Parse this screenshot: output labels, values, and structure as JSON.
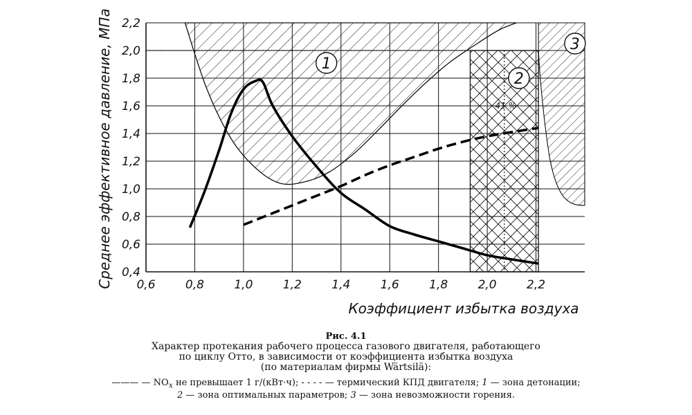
{
  "chart_data": {
    "type": "line",
    "xlabel": "Коэффициент избытка воздуха",
    "ylabel": "Среднее эффективное давление, МПа",
    "xlim": [
      0.6,
      2.4
    ],
    "ylim": [
      0.4,
      2.2
    ],
    "x_ticks": [
      "0,6",
      "0,8",
      "1,0",
      "1,2",
      "1,4",
      "1,6",
      "1,8",
      "2,0",
      "2,2"
    ],
    "y_ticks": [
      "0,4",
      "0,6",
      "0,8",
      "1,0",
      "1,2",
      "1,4",
      "1,6",
      "1,8",
      "2,0",
      "2,2"
    ],
    "grid": true,
    "series": [
      {
        "name": "NOx",
        "style": "solid",
        "x": [
          0.78,
          0.84,
          0.9,
          0.95,
          1.0,
          1.05,
          1.08,
          1.12,
          1.2,
          1.3,
          1.4,
          1.5,
          1.6,
          1.7,
          1.8,
          1.9,
          2.0,
          2.1,
          2.21
        ],
        "y": [
          0.72,
          0.98,
          1.28,
          1.55,
          1.72,
          1.78,
          1.77,
          1.6,
          1.38,
          1.16,
          0.97,
          0.85,
          0.73,
          0.67,
          0.62,
          0.57,
          0.52,
          0.49,
          0.46
        ]
      },
      {
        "name": "термический КПД",
        "style": "dashed",
        "x": [
          1.0,
          1.1,
          1.2,
          1.3,
          1.4,
          1.5,
          1.6,
          1.7,
          1.8,
          1.9,
          2.0,
          2.1,
          2.21
        ],
        "y": [
          0.74,
          0.81,
          0.88,
          0.95,
          1.02,
          1.1,
          1.17,
          1.23,
          1.29,
          1.34,
          1.38,
          1.41,
          1.44
        ]
      }
    ],
    "zones": [
      {
        "label": "1",
        "name": "зона детонации",
        "boundary_x": [
          0.76,
          0.85,
          0.95,
          1.05,
          1.15,
          1.25,
          1.35,
          1.45,
          1.55,
          1.65,
          1.75,
          1.85,
          1.95,
          2.05,
          2.12
        ],
        "boundary_y": [
          2.2,
          1.72,
          1.36,
          1.15,
          1.04,
          1.05,
          1.12,
          1.25,
          1.42,
          1.6,
          1.77,
          1.92,
          2.04,
          2.15,
          2.2
        ]
      },
      {
        "label": "2",
        "name": "зона оптимальных параметров",
        "x_range": [
          1.93,
          2.21
        ],
        "y_range": [
          0.4,
          2.0
        ]
      },
      {
        "label": "3",
        "name": "зона невозможности горения",
        "x_range": [
          2.21,
          2.4
        ],
        "y_range": [
          0.88,
          2.2
        ]
      }
    ],
    "annotations": [
      {
        "text": "41 %",
        "x": 2.07,
        "y": 1.6
      },
      {
        "text": "reference line",
        "x": 2.07,
        "style": "dotted-vertical"
      },
      {
        "text": "reference line",
        "y": 2.0,
        "style": "dotted-horizontal"
      }
    ]
  },
  "caption": {
    "figure": "Рис. 4.1",
    "title_lines": [
      "Характер протекания рабочего процесса газового двигателя, работающего",
      "по циклу Отто, в зависимости от коэффициента избытка воздуха",
      "(по материалам фирмы Wärtsilä):"
    ],
    "legend_line1": {
      "solid_marker": "———",
      "dash1": " — ",
      "nox": "NO",
      "nox_sub": "x",
      "nox_text": " не превышает 1 г/(кВт·ч); ",
      "dashed_marker": "- - - -",
      "dash2": " — термический КПД двигателя; ",
      "zone1_num": "1",
      "zone1_text": " — зона детонации;"
    },
    "legend_line2": {
      "zone2_num": "2",
      "zone2_text": " — зона оптимальных параметров; ",
      "zone3_num": "3",
      "zone3_text": " — зона невозможности горения."
    }
  }
}
